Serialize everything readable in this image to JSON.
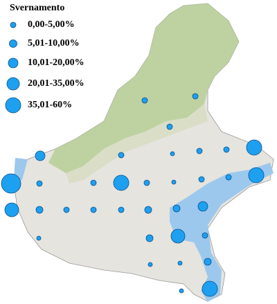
{
  "legend": {
    "title": "Svernamento",
    "items": [
      "0,00-5,00%",
      "5,01-10,00%",
      "10,01-20,00%",
      "20,01-35,00%",
      "35,01-60%"
    ]
  }
}
